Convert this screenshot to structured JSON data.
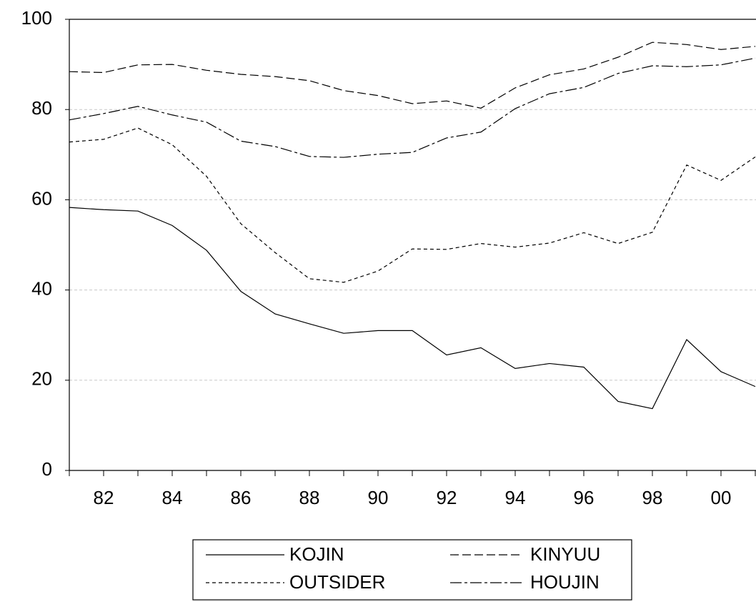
{
  "chart_data": {
    "type": "line",
    "categories": [
      null,
      "82",
      null,
      "84",
      null,
      "86",
      null,
      "88",
      null,
      "90",
      null,
      "92",
      null,
      "94",
      null,
      "96",
      null,
      "98",
      null,
      "00",
      null
    ],
    "series": [
      {
        "name": "KOJIN",
        "color": "#000000",
        "dash": "none",
        "values": [
          58.3,
          57.8,
          57.5,
          54.3,
          48.8,
          39.7,
          34.7,
          32.5,
          30.4,
          31.0,
          31.0,
          25.6,
          27.2,
          22.6,
          23.7,
          22.9,
          15.3,
          13.7,
          29.0,
          21.9,
          18.6
        ]
      },
      {
        "name": "KINYUU",
        "color": "#000000",
        "dash": "12 5",
        "values": [
          88.4,
          88.2,
          89.9,
          90.0,
          88.7,
          87.8,
          87.3,
          86.4,
          84.2,
          83.1,
          81.3,
          81.9,
          80.3,
          84.8,
          87.7,
          89.0,
          91.6,
          94.9,
          94.4,
          93.3,
          94.0
        ]
      },
      {
        "name": "OUTSIDER",
        "color": "#000000",
        "dash": "5 4",
        "values": [
          72.8,
          73.4,
          75.9,
          72.2,
          65.2,
          54.7,
          48.3,
          42.5,
          41.7,
          44.2,
          49.1,
          49.0,
          50.3,
          49.5,
          50.4,
          52.7,
          50.3,
          52.8,
          67.7,
          64.3,
          69.5
        ]
      },
      {
        "name": "HOUJIN",
        "color": "#000000",
        "dash": "16 4 4 4",
        "values": [
          77.7,
          79.1,
          80.7,
          78.8,
          77.2,
          73.0,
          71.8,
          69.6,
          69.4,
          70.1,
          70.5,
          73.7,
          75.0,
          80.2,
          83.5,
          84.9,
          88.0,
          89.7,
          89.5,
          89.9,
          91.4
        ]
      }
    ],
    "ylim": [
      0,
      100
    ],
    "yticks": [
      0,
      20,
      40,
      60,
      80,
      100
    ],
    "grid": true
  }
}
